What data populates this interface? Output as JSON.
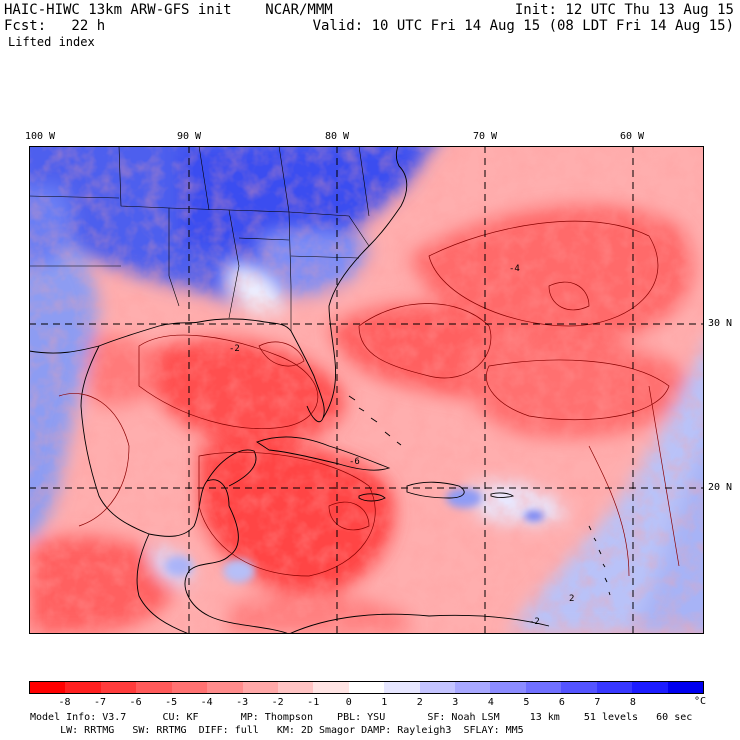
{
  "header": {
    "title": "HAIC-HIWC 13km ARW-GFS init    NCAR/MMM",
    "forecast": "Fcst:   22 h",
    "field": "Lifted index",
    "init": "Init: 12 UTC Thu 13 Aug 15",
    "valid": "Valid: 10 UTC Fri 14 Aug 15 (08 LDT Fri 14 Aug 15)"
  },
  "map": {
    "lon_labels": [
      "100 W",
      "90 W",
      "80 W",
      "70 W",
      "60 W"
    ],
    "lat_labels": [
      "30 N",
      "20 N"
    ],
    "contour_labels": [
      "-2",
      "-4",
      "-6",
      "-2",
      "2"
    ]
  },
  "colorbar": {
    "colors": [
      "#ff0000",
      "#ff2020",
      "#ff3c3c",
      "#ff5a5a",
      "#ff7272",
      "#ff8c8c",
      "#ffa8a8",
      "#ffc4c4",
      "#ffe4e4",
      "#ffffff",
      "#e6e6ff",
      "#c4c4ff",
      "#a8a8ff",
      "#8c8cff",
      "#7070ff",
      "#5454ff",
      "#3838ff",
      "#1c1cff",
      "#0000f0"
    ],
    "labels": [
      "-8",
      "-7",
      "-6",
      "-5",
      "-4",
      "-3",
      "-2",
      "-1",
      "0",
      "1",
      "2",
      "3",
      "4",
      "5",
      "6",
      "7",
      "8"
    ],
    "unit": "°C"
  },
  "footer": {
    "line1": "Model Info: V3.7      CU: KF       MP: Thompson    PBL: YSU       SF: Noah LSM     13 km    51 levels   60 sec",
    "line2": "     LW: RRTMG   SW: RRTMG  DIFF: full   KM: 2D Smagor DAMP: Rayleigh3  SFLAY: MM5"
  }
}
